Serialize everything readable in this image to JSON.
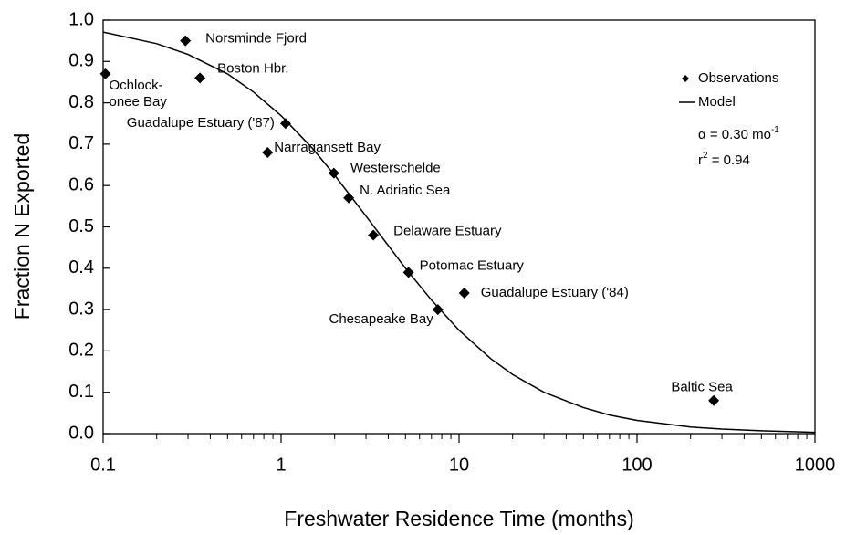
{
  "chart_data": {
    "type": "scatter",
    "xlabel": "Freshwater Residence Time (months)",
    "ylabel": "Fraction N Exported",
    "xscale": "log",
    "xlim": [
      0.1,
      1000
    ],
    "xticks": [
      0.1,
      1,
      10,
      100,
      1000
    ],
    "ylim": [
      0,
      1
    ],
    "yticks": [
      {
        "value": 0,
        "label": "0.0"
      },
      0.1,
      0.2,
      0.3,
      0.4,
      0.5,
      0.6,
      0.7,
      0.8,
      0.9,
      {
        "value": 1,
        "label": "1.0"
      }
    ],
    "grid": false,
    "legend": "upper right",
    "series": [
      {
        "name": "Observations",
        "kind": "points",
        "color": "#000000",
        "x": [
          0.103,
          0.29,
          0.35,
          0.84,
          1.06,
          1.98,
          2.4,
          3.3,
          5.2,
          10.7,
          7.6,
          270
        ],
        "values": [
          0.87,
          0.95,
          0.86,
          0.68,
          0.75,
          0.63,
          0.57,
          0.48,
          0.39,
          0.34,
          0.3,
          0.08
        ],
        "labels": [
          [
            "Ochlock-",
            "onee Bay"
          ],
          [
            "Norsminde Fjord"
          ],
          [
            "Boston Hbr."
          ],
          [
            "Narragansett Bay"
          ],
          [
            "Guadalupe Estuary ('87)"
          ],
          [
            "Westerschelde"
          ],
          [
            "N. Adriatic Sea"
          ],
          [
            "Delaware Estuary"
          ],
          [
            "Potomac Estuary"
          ],
          [
            "Guadalupe Estuary ('84)"
          ],
          [
            "Chesapeake Bay"
          ],
          [
            "Baltic Sea"
          ]
        ]
      },
      {
        "name": "Model",
        "kind": "line",
        "color": "#000000",
        "x": [
          0.1,
          0.2,
          0.3,
          0.5,
          0.7,
          1,
          1.5,
          2,
          3,
          5,
          7,
          10,
          15,
          20,
          30,
          50,
          70,
          100,
          200,
          300,
          500,
          1000
        ],
        "values": [
          0.971,
          0.943,
          0.917,
          0.87,
          0.826,
          0.769,
          0.69,
          0.625,
          0.526,
          0.4,
          0.323,
          0.25,
          0.182,
          0.143,
          0.1,
          0.063,
          0.045,
          0.032,
          0.016,
          0.011,
          0.007,
          0.003
        ]
      }
    ],
    "annotations": [
      {
        "text": "α = 0.30 mo",
        "sup": "-1"
      },
      {
        "text": "r",
        "sup": "2",
        "after": " = 0.94"
      }
    ]
  }
}
